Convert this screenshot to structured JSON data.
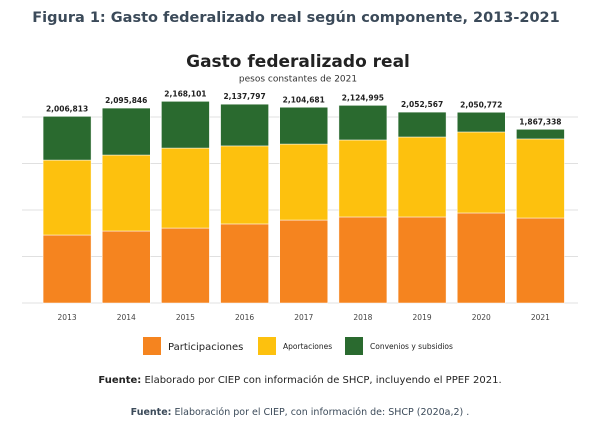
{
  "figure": {
    "title": "Figura 1: Gasto federalizado real según componente, 2013-2021"
  },
  "chart_data": {
    "type": "stacked_bar",
    "title": "Gasto federalizado real",
    "subtitle": "pesos constantes de 2021",
    "categories": [
      "2013",
      "2014",
      "2015",
      "2016",
      "2017",
      "2018",
      "2019",
      "2020",
      "2021"
    ],
    "series": [
      {
        "name": "Participaciones",
        "color": "#f5841f",
        "values": [
          731000,
          774000,
          806000,
          850000,
          892000,
          925000,
          925000,
          968000,
          914000
        ]
      },
      {
        "name": "Aportaciones",
        "color": "#fdc10e",
        "values": [
          806000,
          817000,
          860000,
          839000,
          817000,
          828000,
          860000,
          871000,
          850000
        ]
      },
      {
        "name": "Convenios y subsidios",
        "color": "#2a6a2f",
        "values": [
          469813,
          504846,
          502101,
          448797,
          395681,
          371995,
          267567,
          211772,
          103338
        ]
      }
    ],
    "totals": [
      2006813,
      2095846,
      2168101,
      2137797,
      2104681,
      2124995,
      2052567,
      2050772,
      1867338
    ],
    "total_labels": [
      "2,006,813",
      "2,095,846",
      "2,168,101",
      "2,137,797",
      "2,104,681",
      "2,124,995",
      "2,052,567",
      "2,050,772",
      "1,867,338"
    ],
    "ylim": [
      0,
      2200000
    ],
    "yticks": [
      0,
      500000,
      1000000,
      1500000,
      2000000
    ],
    "grid": true
  },
  "sources": [
    {
      "label": "Fuente:",
      "text": "Elaborado por CIEP con información de SHCP, incluyendo el PPEF 2021."
    },
    {
      "label": "Fuente:",
      "text": "Elaboración por el CIEP, con información de: SHCP (2020a,2) ."
    }
  ]
}
